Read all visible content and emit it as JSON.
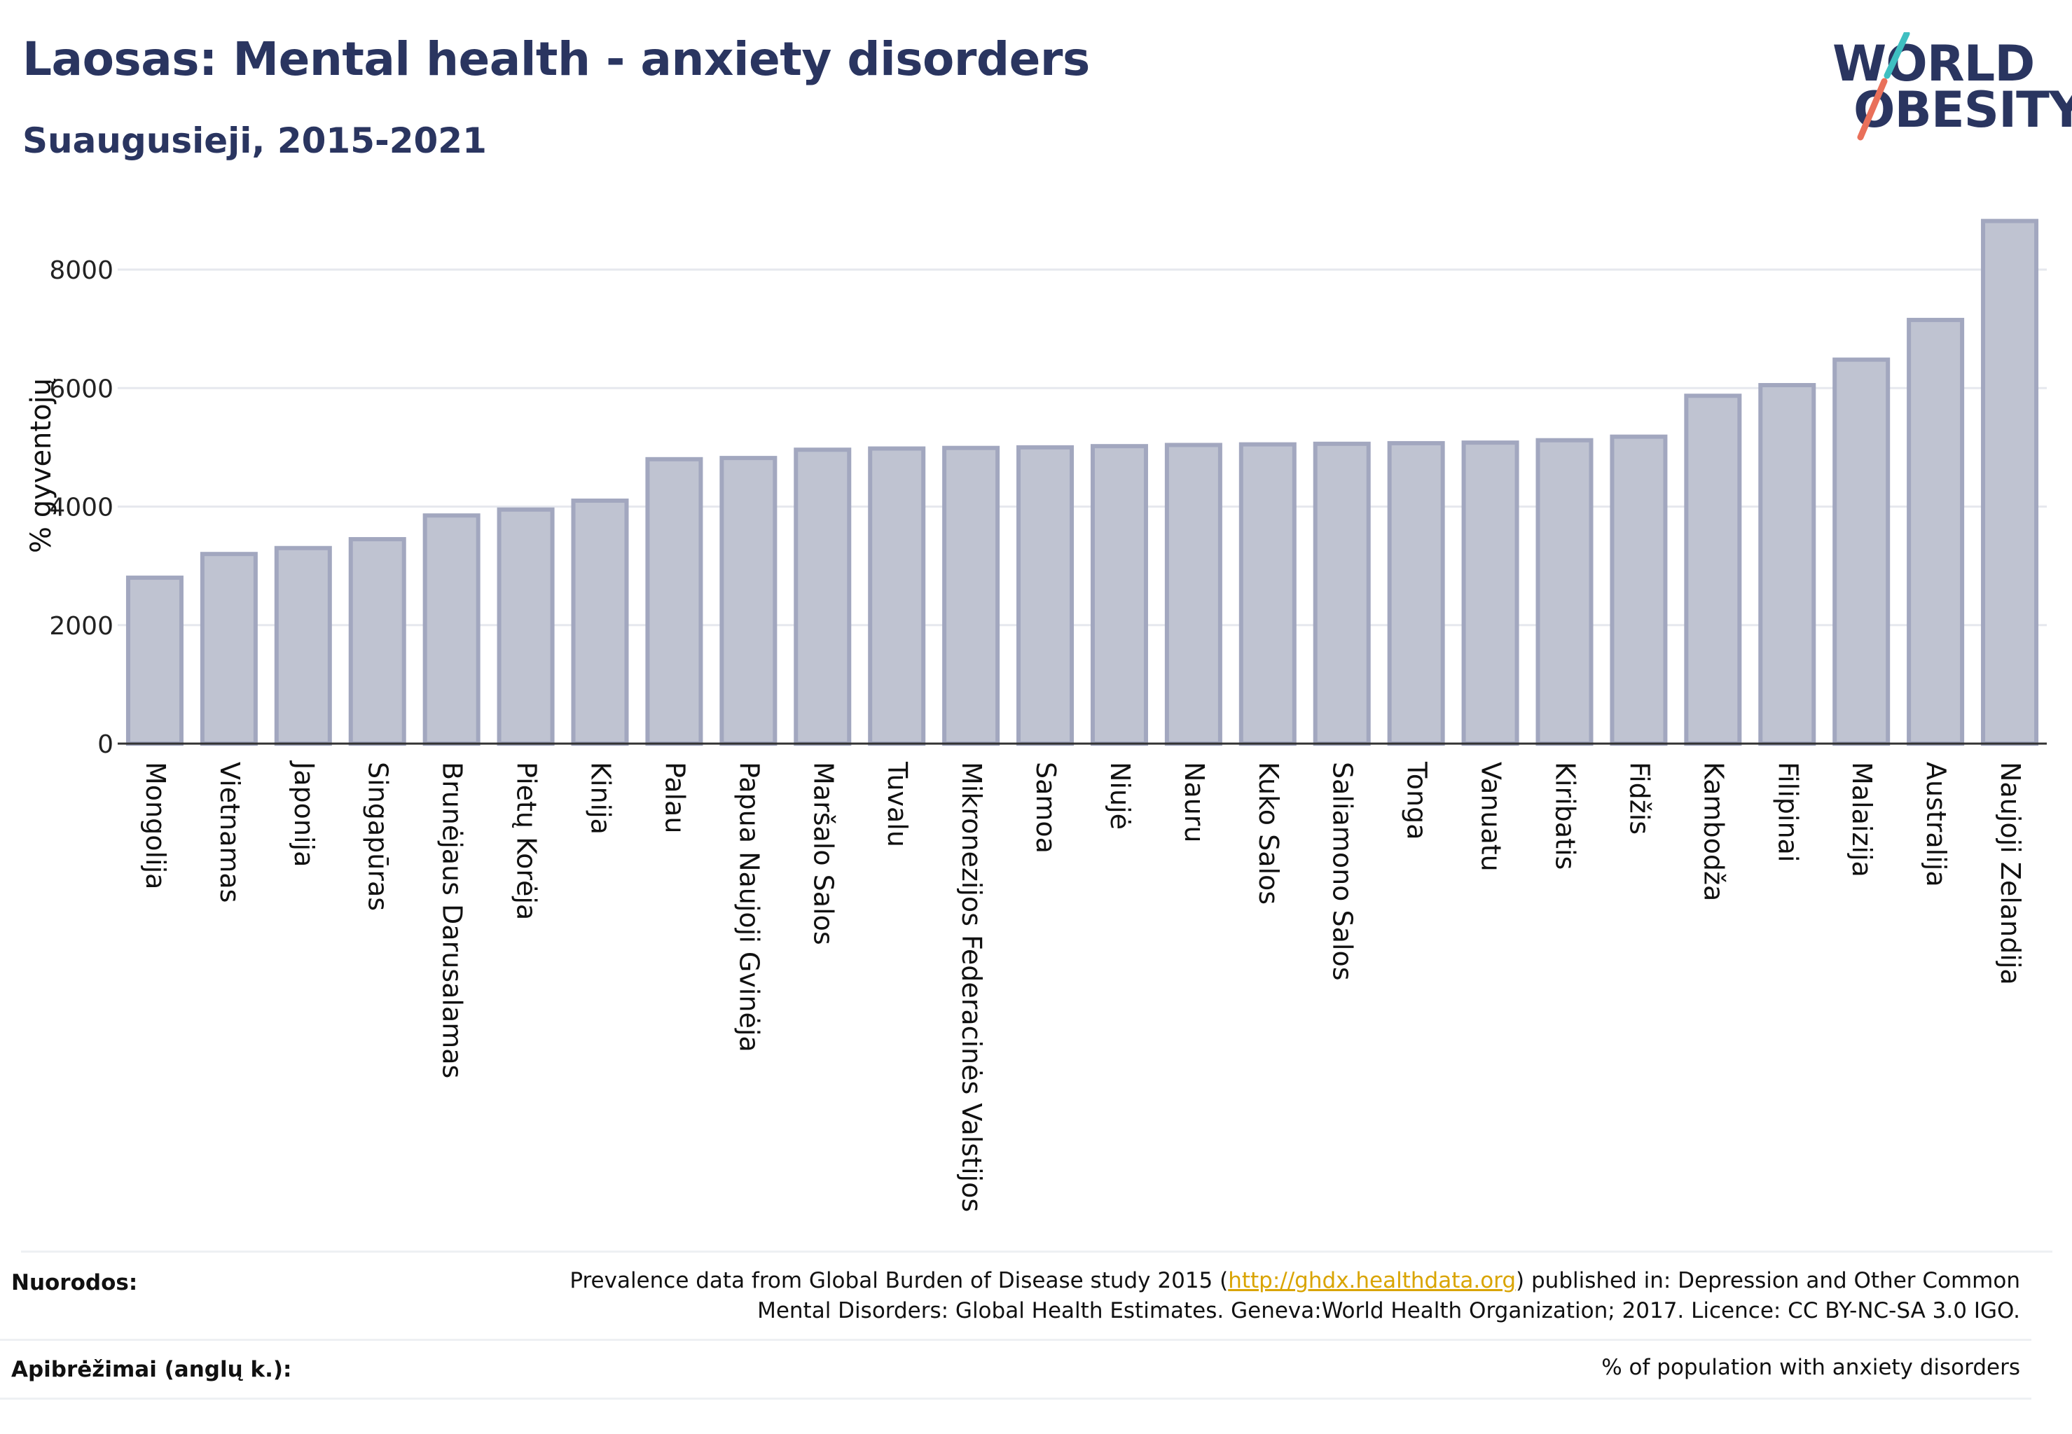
{
  "header": {
    "title": "Laosas: Mental health - anxiety disorders",
    "subtitle": "Suaugusieji, 2015-2021"
  },
  "logo": {
    "line1": "WORLD",
    "line2": "OBESITY",
    "colors": {
      "text": "#2a3560",
      "slash_top": "#3fbfc1",
      "slash_bottom": "#e9705a"
    }
  },
  "colors": {
    "bar_fill": "#bfc3d1",
    "bar_stroke": "#a2a7bf",
    "grid": "#e6e8ee",
    "axis": "#333333",
    "title": "#2a3560"
  },
  "chart_data": {
    "type": "bar",
    "ylabel": "% gyventojų",
    "xlabel": "",
    "ylim": [
      0,
      9000
    ],
    "yticks": [
      0,
      2000,
      4000,
      6000,
      8000
    ],
    "grid": true,
    "categories": [
      "Mongolija",
      "Vietnamas",
      "Japonija",
      "Singapūras",
      "Brunėjaus Darusalamas",
      "Pietų Korėja",
      "Kinija",
      "Palau",
      "Papua Naujoji Gvinėja",
      "Maršalo Salos",
      "Tuvalu",
      "Mikronezijos Federacinės Valstijos",
      "Samoa",
      "Niujė",
      "Nauru",
      "Kuko Salos",
      "Saliamono Salos",
      "Tonga",
      "Vanuatu",
      "Kiribatis",
      "Fidžis",
      "Kambodža",
      "Filipinai",
      "Malaizija",
      "Australija",
      "Naujoji Zelandija"
    ],
    "values": [
      2800,
      3200,
      3300,
      3450,
      3850,
      3950,
      4100,
      4800,
      4820,
      4960,
      4980,
      4990,
      5000,
      5020,
      5040,
      5050,
      5060,
      5070,
      5080,
      5120,
      5180,
      5870,
      6050,
      6480,
      7150,
      8820
    ]
  },
  "footer": {
    "references_label": "Nuorodos:",
    "references_before": "Prevalence data from Global Burden of Disease study 2015 (",
    "references_link": "http://ghdx.healthdata.org",
    "references_after": ") published in: Depression and Other Common",
    "references_line2": "Mental Disorders: Global Health Estimates. Geneva:World Health Organization; 2017. Licence: CC BY-NC-SA 3.0 IGO.",
    "definitions_label": "Apibrėžimai (anglų k.):",
    "definitions_text": "% of population with anxiety disorders"
  }
}
